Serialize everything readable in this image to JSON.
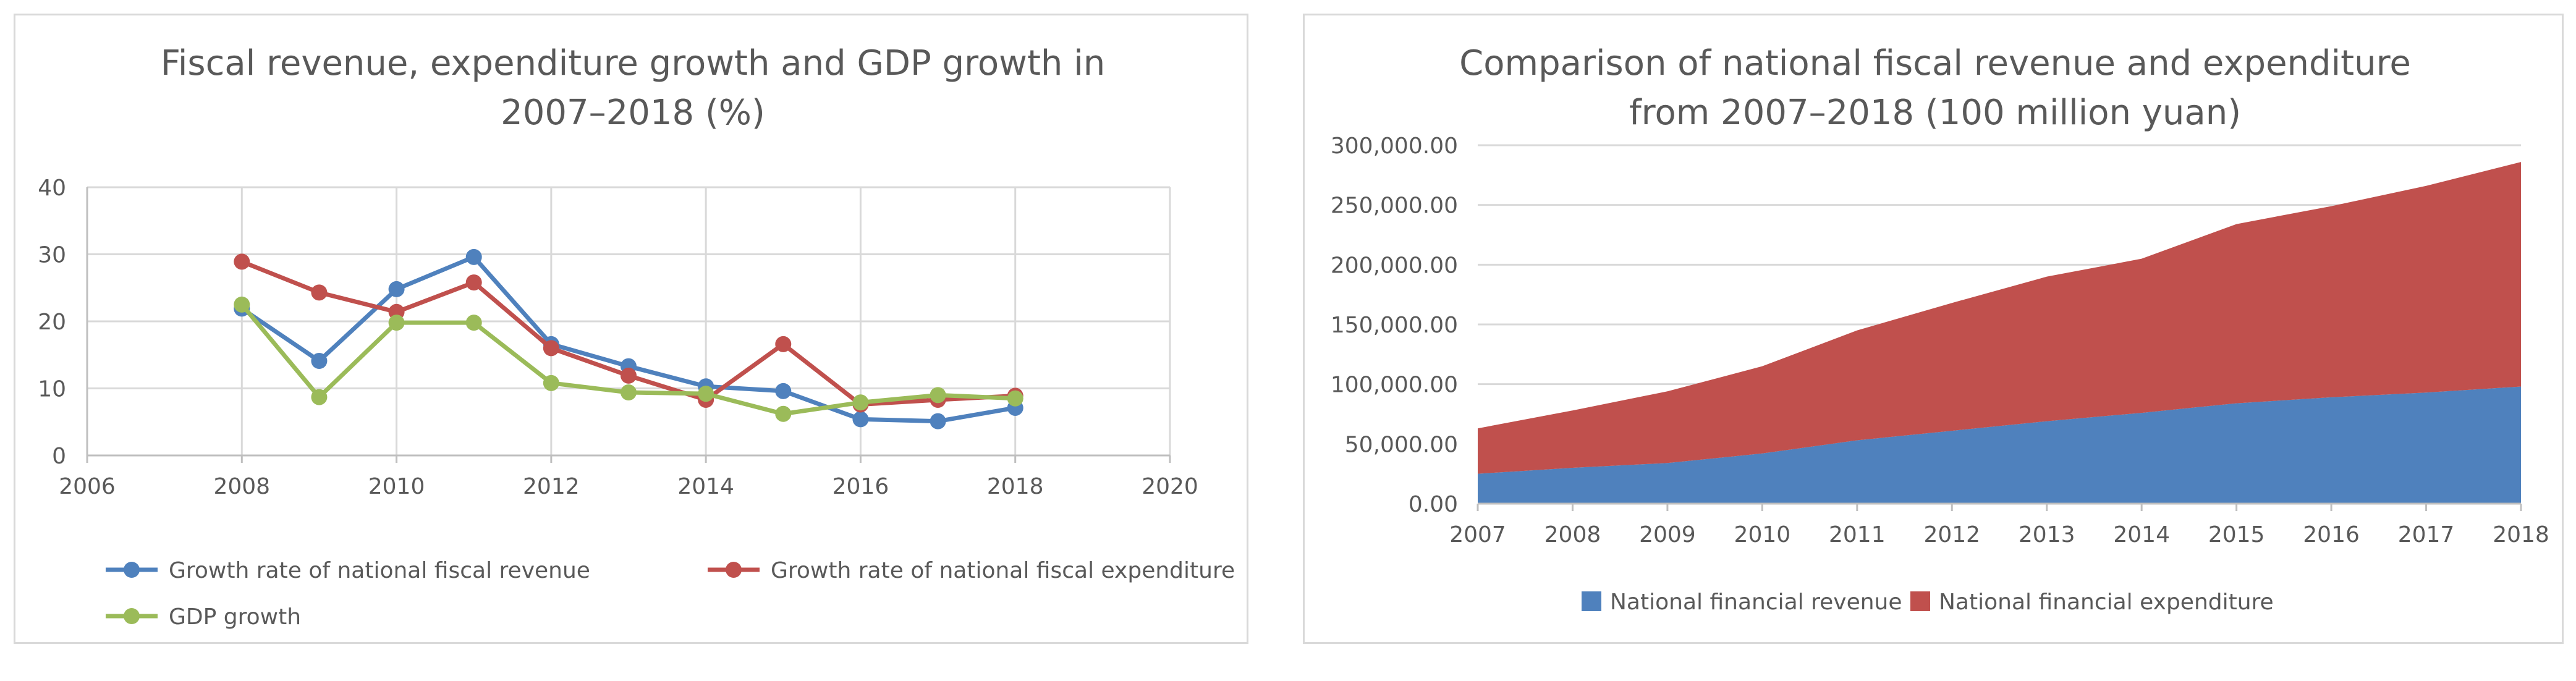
{
  "chart_data": [
    {
      "type": "line",
      "title_lines": [
        "Fiscal revenue, expenditure growth and GDP growth in",
        "2007–2018 (%)"
      ],
      "xlim": [
        2006,
        2020
      ],
      "ylim": [
        0,
        40
      ],
      "x_ticks": [
        "2006",
        "2008",
        "2010",
        "2012",
        "2014",
        "2016",
        "2018",
        "2020"
      ],
      "y_ticks": [
        "0",
        "10",
        "20",
        "30",
        "40"
      ],
      "grid": true,
      "legend_position": "bottom",
      "x": [
        2008,
        2009,
        2010,
        2011,
        2012,
        2013,
        2014,
        2015,
        2016,
        2017,
        2018
      ],
      "series": [
        {
          "name": "Growth rate of national fiscal revenue",
          "color": "#4f81bd",
          "values": [
            21.9,
            14.1,
            24.8,
            29.6,
            16.6,
            13.3,
            10.3,
            9.6,
            5.4,
            5.1,
            7.1
          ]
        },
        {
          "name": "Growth rate of national fiscal expenditure",
          "color": "#c0504d",
          "values": [
            28.9,
            24.3,
            21.4,
            25.8,
            16.0,
            11.9,
            8.3,
            16.6,
            7.6,
            8.3,
            8.9
          ]
        },
        {
          "name": "GDP growth",
          "color": "#9bbb59",
          "values": [
            22.5,
            8.7,
            19.8,
            19.8,
            10.8,
            9.4,
            9.2,
            6.2,
            7.9,
            9.0,
            8.5
          ]
        }
      ]
    },
    {
      "type": "area",
      "stacked": true,
      "title_lines": [
        "Comparison of national fiscal revenue and expenditure",
        "from 2007–2018 (100 million yuan)"
      ],
      "categories": [
        "2007",
        "2008",
        "2009",
        "2010",
        "2011",
        "2012",
        "2013",
        "2014",
        "2015",
        "2016",
        "2017",
        "2018"
      ],
      "ylim": [
        0,
        300000
      ],
      "y_ticks": [
        "0.00",
        "50,000.00",
        "100,000.00",
        "150,000.00",
        "200,000.00",
        "250,000.00",
        "300,000.00"
      ],
      "grid": true,
      "legend_position": "bottom",
      "series": [
        {
          "name": "National financial revenue",
          "color": "#4f81bd",
          "values": [
            25000,
            30000,
            34000,
            42000,
            53000,
            61000,
            69000,
            76000,
            84000,
            89000,
            93000,
            98000
          ]
        },
        {
          "name": "National financial expenditure",
          "color": "#c0504d",
          "values": [
            38000,
            48000,
            60000,
            73000,
            92000,
            107000,
            121000,
            129000,
            150000,
            160000,
            173000,
            188000
          ]
        }
      ]
    }
  ]
}
